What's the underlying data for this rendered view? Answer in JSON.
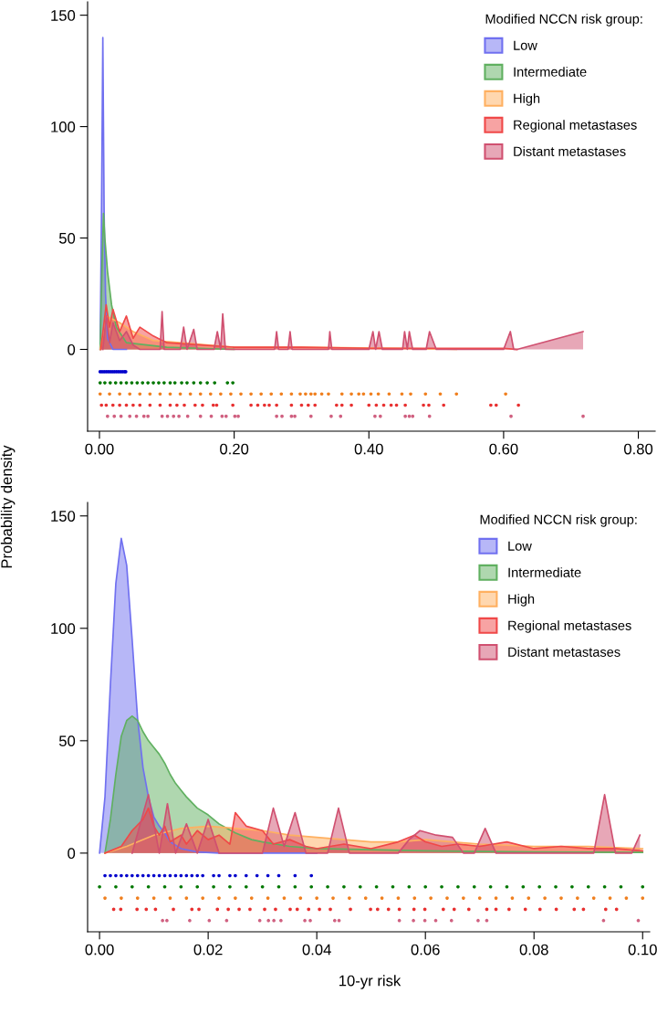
{
  "chart_data": [
    {
      "type": "area",
      "ylabel": "Probability density",
      "legend_title": "Modified NCCN risk group:",
      "legend": "top right",
      "grid": false,
      "xlim": [
        -0.0176,
        0.825
      ],
      "ylim": [
        -36.7,
        156
      ],
      "xticks": [
        {
          "value": 0,
          "label": "0.00"
        },
        {
          "value": 0.2,
          "label": "0.20"
        },
        {
          "value": 0.4,
          "label": "0.40"
        },
        {
          "value": 0.6,
          "label": "0.60"
        },
        {
          "value": 0.8,
          "label": "0.80"
        }
      ],
      "yticks": [
        0,
        50,
        100,
        150
      ],
      "series": [
        {
          "name": "Low",
          "color": "#7070f0",
          "x": [
            0.001,
            0.003,
            0.005,
            0.007,
            0.009,
            0.012,
            0.02,
            0.04
          ],
          "values": [
            0,
            60,
            140,
            60,
            25,
            5,
            0,
            0
          ]
        },
        {
          "name": "Intermediate",
          "color": "#60b060",
          "x": [
            0.001,
            0.004,
            0.006,
            0.008,
            0.012,
            0.018,
            0.025,
            0.04,
            0.1,
            0.2
          ],
          "values": [
            0,
            40,
            61,
            50,
            35,
            20,
            10,
            3,
            1,
            0
          ]
        },
        {
          "name": "High",
          "color": "#ffb060",
          "x": [
            0.001,
            0.01,
            0.03,
            0.05,
            0.08,
            0.12,
            0.2,
            0.3,
            0.45,
            0.53
          ],
          "values": [
            0,
            15,
            12,
            8,
            4,
            3,
            1,
            1,
            0.5,
            0
          ]
        },
        {
          "name": "Regional metastases",
          "color": "#f04848",
          "x": [
            0.002,
            0.01,
            0.015,
            0.02,
            0.03,
            0.04,
            0.05,
            0.06,
            0.08,
            0.1,
            0.15,
            0.2,
            0.3,
            0.4,
            0.5,
            0.6,
            0.62
          ],
          "values": [
            0,
            20,
            10,
            18,
            8,
            15,
            5,
            10,
            6,
            3,
            2,
            1,
            1,
            0.5,
            0.5,
            0.5,
            0
          ]
        },
        {
          "name": "Distant metastases",
          "color": "#d05070",
          "x": [
            0.005,
            0.01,
            0.015,
            0.02,
            0.03,
            0.04,
            0.05,
            0.06,
            0.09,
            0.093,
            0.096,
            0.12,
            0.125,
            0.13,
            0.14,
            0.145,
            0.17,
            0.175,
            0.18,
            0.183,
            0.187,
            0.26,
            0.263,
            0.266,
            0.28,
            0.283,
            0.286,
            0.34,
            0.342,
            0.345,
            0.4,
            0.406,
            0.41,
            0.415,
            0.42,
            0.45,
            0.453,
            0.457,
            0.46,
            0.465,
            0.485,
            0.49,
            0.5,
            0.6,
            0.61,
            0.615,
            0.62,
            0.718
          ],
          "values": [
            0,
            15,
            3,
            12,
            4,
            8,
            2,
            0,
            0,
            17,
            0,
            0,
            10,
            0,
            9,
            0,
            0,
            8,
            0,
            16,
            0,
            0,
            8,
            0,
            0,
            8,
            0,
            0,
            8,
            0,
            0,
            8,
            0,
            8,
            0,
            0,
            8,
            0,
            8,
            0,
            0,
            8,
            0,
            0,
            8,
            0,
            0,
            8
          ]
        },
        {
          "type": "scatter",
          "color": "#0000cc",
          "x": [
            0.001,
            0.004,
            0.007,
            0.01,
            0.013,
            0.016,
            0.019,
            0.022,
            0.025,
            0.028,
            0.031,
            0.034,
            0.037,
            0.039
          ],
          "values": [
            -10,
            -10,
            -10,
            -10,
            -10,
            -10,
            -10,
            -10,
            -10,
            -10,
            -10,
            -10,
            -10,
            -10
          ]
        },
        {
          "type": "scatter",
          "color": "#007700",
          "x": [
            0.001,
            0.008,
            0.016,
            0.024,
            0.032,
            0.04,
            0.048,
            0.056,
            0.064,
            0.072,
            0.08,
            0.088,
            0.096,
            0.105,
            0.112,
            0.122,
            0.13,
            0.14,
            0.15,
            0.16,
            0.171,
            0.19,
            0.198
          ],
          "values": [
            -15,
            -15,
            -15,
            -15,
            -15,
            -15,
            -15,
            -15,
            -15,
            -15,
            -15,
            -15,
            -15,
            -15,
            -15,
            -15,
            -15,
            -15,
            -15,
            -15,
            -15,
            -15,
            -15
          ]
        },
        {
          "type": "scatter",
          "color": "#f08020",
          "x": [
            0.001,
            0.015,
            0.03,
            0.045,
            0.06,
            0.075,
            0.09,
            0.105,
            0.12,
            0.135,
            0.15,
            0.165,
            0.18,
            0.195,
            0.21,
            0.225,
            0.24,
            0.255,
            0.27,
            0.285,
            0.298,
            0.306,
            0.314,
            0.32,
            0.33,
            0.34,
            0.36,
            0.374,
            0.385,
            0.392,
            0.403,
            0.414,
            0.43,
            0.449,
            0.462,
            0.484,
            0.506,
            0.53,
            0.603
          ],
          "values": [
            -20,
            -20,
            -20,
            -20,
            -20,
            -20,
            -20,
            -20,
            -20,
            -20,
            -20,
            -20,
            -20,
            -20,
            -20,
            -20,
            -20,
            -20,
            -20,
            -20,
            -20,
            -20,
            -20,
            -20,
            -20,
            -20,
            -20,
            -20,
            -20,
            -20,
            -20,
            -20,
            -20,
            -20,
            -20,
            -20,
            -20,
            -20,
            -20
          ]
        },
        {
          "type": "scatter",
          "color": "#e83030",
          "x": [
            0.003,
            0.01,
            0.02,
            0.03,
            0.04,
            0.05,
            0.06,
            0.075,
            0.09,
            0.105,
            0.115,
            0.126,
            0.142,
            0.153,
            0.169,
            0.174,
            0.198,
            0.225,
            0.235,
            0.245,
            0.252,
            0.263,
            0.285,
            0.3,
            0.31,
            0.32,
            0.352,
            0.36,
            0.374,
            0.4,
            0.411,
            0.422,
            0.433,
            0.441,
            0.454,
            0.481,
            0.489,
            0.511,
            0.581,
            0.589,
            0.622
          ],
          "values": [
            -25,
            -25,
            -25,
            -25,
            -25,
            -25,
            -25,
            -25,
            -25,
            -25,
            -25,
            -25,
            -25,
            -25,
            -25,
            -25,
            -25,
            -25,
            -25,
            -25,
            -25,
            -25,
            -25,
            -25,
            -25,
            -25,
            -25,
            -25,
            -25,
            -25,
            -25,
            -25,
            -25,
            -25,
            -25,
            -25,
            -25,
            -25,
            -25,
            -25,
            -25
          ]
        },
        {
          "type": "scatter",
          "color": "#d06080",
          "x": [
            0.012,
            0.022,
            0.032,
            0.045,
            0.055,
            0.066,
            0.072,
            0.093,
            0.101,
            0.11,
            0.118,
            0.131,
            0.15,
            0.166,
            0.182,
            0.188,
            0.201,
            0.206,
            0.263,
            0.271,
            0.285,
            0.29,
            0.314,
            0.344,
            0.358,
            0.409,
            0.417,
            0.454,
            0.46,
            0.465,
            0.49,
            0.611,
            0.718
          ],
          "values": [
            -30,
            -30,
            -30,
            -30,
            -30,
            -30,
            -30,
            -30,
            -30,
            -30,
            -30,
            -30,
            -30,
            -30,
            -30,
            -30,
            -30,
            -30,
            -30,
            -30,
            -30,
            -30,
            -30,
            -30,
            -30,
            -30,
            -30,
            -30,
            -30,
            -30,
            -30,
            -30,
            -30
          ]
        }
      ]
    },
    {
      "type": "area",
      "xlabel": "10-yr risk",
      "legend_title": "Modified NCCN risk group:",
      "legend": "top right",
      "grid": false,
      "xlim": [
        -0.0022,
        0.1013
      ],
      "ylim": [
        -35,
        156
      ],
      "xticks": [
        {
          "value": 0,
          "label": "0.00"
        },
        {
          "value": 0.02,
          "label": "0.02"
        },
        {
          "value": 0.04,
          "label": "0.04"
        },
        {
          "value": 0.06,
          "label": "0.06"
        },
        {
          "value": 0.08,
          "label": "0.08"
        },
        {
          "value": 0.1,
          "label": "0.10"
        }
      ],
      "yticks": [
        0,
        50,
        100,
        150
      ],
      "series": [
        {
          "name": "Low",
          "color": "#7070f0",
          "x": [
            0,
            0.001,
            0.002,
            0.003,
            0.004,
            0.005,
            0.006,
            0.007,
            0.008,
            0.009,
            0.01,
            0.011,
            0.012,
            0.013,
            0.015,
            0.018,
            0.022,
            0.04
          ],
          "values": [
            0,
            25,
            75,
            120,
            140,
            128,
            95,
            60,
            38,
            25,
            16,
            12,
            9,
            5,
            2,
            0.5,
            0,
            0
          ]
        },
        {
          "name": "Intermediate",
          "color": "#60b060",
          "x": [
            0.001,
            0.002,
            0.003,
            0.004,
            0.005,
            0.006,
            0.007,
            0.008,
            0.009,
            0.01,
            0.011,
            0.012,
            0.013,
            0.014,
            0.015,
            0.016,
            0.018,
            0.02,
            0.022,
            0.025,
            0.028,
            0.03,
            0.035,
            0.04,
            0.05,
            0.06,
            0.08,
            0.1
          ],
          "values": [
            0,
            15,
            35,
            52,
            59,
            61,
            59,
            54,
            50,
            47,
            44,
            40,
            35,
            31,
            28,
            25,
            20,
            17,
            13,
            9,
            6,
            5,
            3,
            2,
            1.5,
            1,
            0.5,
            0.3
          ]
        },
        {
          "name": "High",
          "color": "#ffb060",
          "x": [
            0.001,
            0.005,
            0.01,
            0.015,
            0.02,
            0.025,
            0.03,
            0.035,
            0.04,
            0.045,
            0.05,
            0.055,
            0.06,
            0.065,
            0.07,
            0.08,
            0.09,
            0.1
          ],
          "values": [
            0,
            3,
            8,
            11,
            12,
            11,
            10,
            8,
            7,
            6,
            5,
            5,
            6,
            5,
            4,
            3,
            3,
            2
          ]
        },
        {
          "name": "Regional metastases",
          "color": "#f04848",
          "x": [
            0.001,
            0.004,
            0.006,
            0.008,
            0.009,
            0.01,
            0.011,
            0.012,
            0.013,
            0.015,
            0.016,
            0.018,
            0.02,
            0.022,
            0.024,
            0.025,
            0.027,
            0.03,
            0.032,
            0.035,
            0.038,
            0.04,
            0.045,
            0.05,
            0.055,
            0.058,
            0.06,
            0.063,
            0.066,
            0.07,
            0.075,
            0.08,
            0.085,
            0.09,
            0.095,
            0.1
          ],
          "values": [
            0,
            3,
            10,
            15,
            20,
            12,
            8,
            12,
            5,
            8,
            4,
            10,
            6,
            8,
            4,
            18,
            12,
            10,
            4,
            6,
            3,
            2,
            4,
            2,
            5,
            8,
            5,
            3,
            4,
            3,
            5,
            2,
            3,
            2,
            2,
            1
          ]
        },
        {
          "name": "Distant metastases",
          "color": "#d05070",
          "x": [
            0.006,
            0.009,
            0.011,
            0.0125,
            0.014,
            0.016,
            0.018,
            0.02,
            0.022,
            0.03,
            0.032,
            0.034,
            0.036,
            0.038,
            0.042,
            0.044,
            0.046,
            0.055,
            0.057,
            0.059,
            0.062,
            0.065,
            0.067,
            0.069,
            0.071,
            0.073,
            0.091,
            0.093,
            0.095,
            0.098,
            0.0995
          ],
          "values": [
            0,
            26,
            0,
            22,
            0,
            13,
            0,
            15,
            0,
            0,
            20,
            3,
            18,
            0,
            0,
            20,
            0,
            0,
            6,
            10,
            8,
            7,
            0,
            0,
            11,
            0,
            0,
            26,
            0,
            0,
            8
          ]
        },
        {
          "type": "scatter",
          "color": "#0000cc",
          "x": [
            0.001,
            0.002,
            0.003,
            0.004,
            0.005,
            0.006,
            0.007,
            0.008,
            0.009,
            0.01,
            0.011,
            0.012,
            0.013,
            0.014,
            0.015,
            0.016,
            0.017,
            0.018,
            0.019,
            0.021,
            0.022,
            0.024,
            0.025,
            0.027,
            0.029,
            0.031,
            0.033,
            0.036,
            0.039
          ],
          "values": [
            -10,
            -10,
            -10,
            -10,
            -10,
            -10,
            -10,
            -10,
            -10,
            -10,
            -10,
            -10,
            -10,
            -10,
            -10,
            -10,
            -10,
            -10,
            -10,
            -10,
            -10,
            -10,
            -10,
            -10,
            -10,
            -10,
            -10,
            -10,
            -10
          ]
        },
        {
          "type": "scatter",
          "color": "#007700",
          "x": [
            0,
            0.003,
            0.006,
            0.009,
            0.012,
            0.015,
            0.018,
            0.021,
            0.024,
            0.027,
            0.03,
            0.033,
            0.036,
            0.039,
            0.042,
            0.045,
            0.048,
            0.051,
            0.054,
            0.057,
            0.06,
            0.063,
            0.066,
            0.069,
            0.072,
            0.075,
            0.078,
            0.081,
            0.084,
            0.087,
            0.09,
            0.093,
            0.096,
            0.1
          ],
          "values": [
            -15,
            -15,
            -15,
            -15,
            -15,
            -15,
            -15,
            -15,
            -15,
            -15,
            -15,
            -15,
            -15,
            -15,
            -15,
            -15,
            -15,
            -15,
            -15,
            -15,
            -15,
            -15,
            -15,
            -15,
            -15,
            -15,
            -15,
            -15,
            -15,
            -15,
            -15,
            -15,
            -15,
            -15
          ]
        },
        {
          "type": "scatter",
          "color": "#f08020",
          "x": [
            0.001,
            0.004,
            0.007,
            0.01,
            0.013,
            0.016,
            0.019,
            0.022,
            0.025,
            0.028,
            0.031,
            0.034,
            0.037,
            0.04,
            0.043,
            0.046,
            0.049,
            0.052,
            0.055,
            0.058,
            0.061,
            0.064,
            0.067,
            0.07,
            0.073,
            0.076,
            0.079,
            0.082,
            0.085,
            0.088,
            0.091,
            0.094,
            0.097,
            0.1
          ],
          "values": [
            -20,
            -20,
            -20,
            -20,
            -20,
            -20,
            -20,
            -20,
            -20,
            -20,
            -20,
            -20,
            -20,
            -20,
            -20,
            -20,
            -20,
            -20,
            -20,
            -20,
            -20,
            -20,
            -20,
            -20,
            -20,
            -20,
            -20,
            -20,
            -20,
            -20,
            -20,
            -20,
            -20,
            -20
          ]
        },
        {
          "type": "scatter",
          "color": "#e83030",
          "x": [
            0.0026,
            0.0039,
            0.0069,
            0.0086,
            0.0103,
            0.0136,
            0.017,
            0.0183,
            0.0217,
            0.0237,
            0.0257,
            0.0277,
            0.0304,
            0.0324,
            0.0351,
            0.0364,
            0.0385,
            0.0405,
            0.0425,
            0.0462,
            0.0499,
            0.0512,
            0.0532,
            0.0552,
            0.0579,
            0.0599,
            0.0633,
            0.0653,
            0.068,
            0.0713,
            0.073,
            0.0754,
            0.0784,
            0.0811,
            0.0841,
            0.0874,
            0.0891,
            0.0932,
            0.0952
          ],
          "values": [
            -25,
            -25,
            -25,
            -25,
            -25,
            -25,
            -25,
            -25,
            -25,
            -25,
            -25,
            -25,
            -25,
            -25,
            -25,
            -25,
            -25,
            -25,
            -25,
            -25,
            -25,
            -25,
            -25,
            -25,
            -25,
            -25,
            -25,
            -25,
            -25,
            -25,
            -25,
            -25,
            -25,
            -25,
            -25,
            -25,
            -25,
            -25,
            -25
          ]
        },
        {
          "type": "scatter",
          "color": "#d06080",
          "x": [
            0.0116,
            0.0124,
            0.0166,
            0.0202,
            0.0234,
            0.0295,
            0.0311,
            0.0321,
            0.0334,
            0.0378,
            0.0388,
            0.0433,
            0.0441,
            0.0552,
            0.0578,
            0.0599,
            0.0619,
            0.0648,
            0.0697,
            0.0713,
            0.0928,
            0.0992
          ],
          "values": [
            -30,
            -30,
            -30,
            -30,
            -30,
            -30,
            -30,
            -30,
            -30,
            -30,
            -30,
            -30,
            -30,
            -30,
            -30,
            -30,
            -30,
            -30,
            -30,
            -30,
            -30,
            -30
          ]
        }
      ]
    }
  ]
}
